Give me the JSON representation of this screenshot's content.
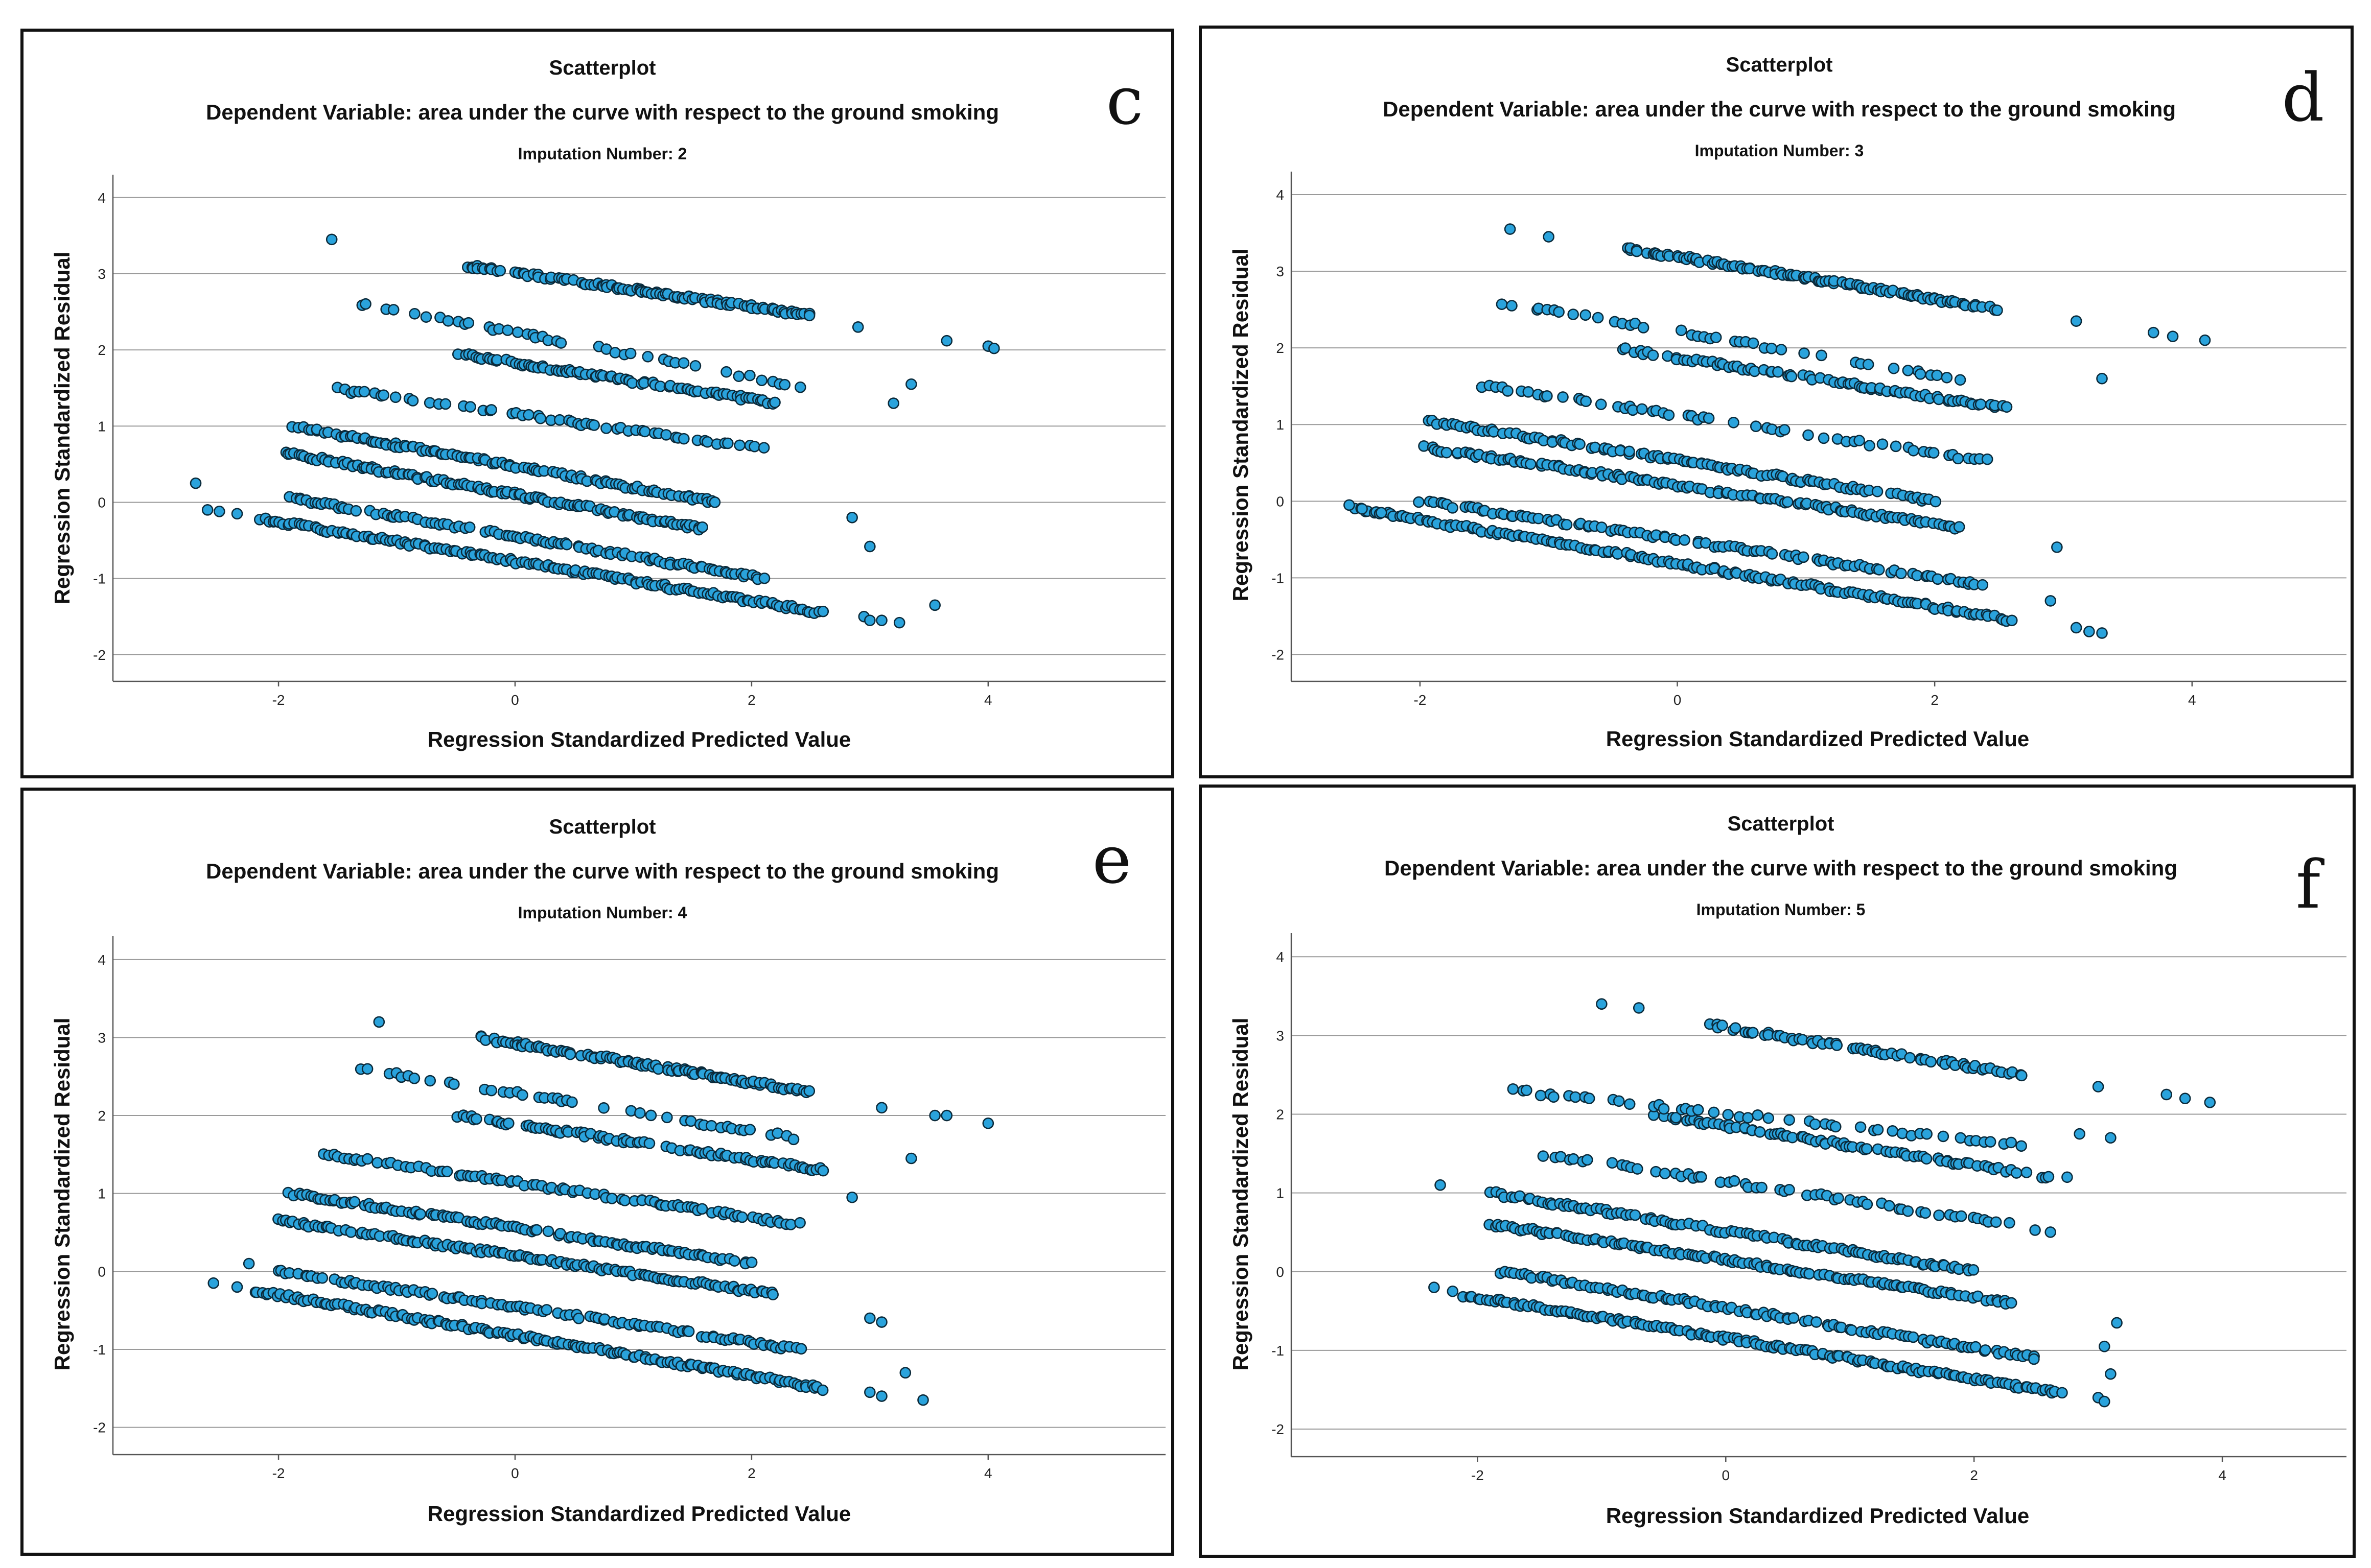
{
  "chart_data": [
    {
      "type": "scatter",
      "panel_letter": "c",
      "title": "Scatterplot",
      "subtitle": "Dependent Variable: area under the curve with respect to the ground smoking",
      "imputation": "Imputation Number: 2",
      "xlabel": "Regression Standardized Predicted Value",
      "ylabel": "Regression Standardized Residual",
      "xlim": [
        -3.4,
        5.5
      ],
      "ylim": [
        -2.35,
        4.3
      ],
      "xticks": [
        "-2",
        "0",
        "2",
        "4"
      ],
      "yticks": [
        "-2",
        "-1",
        "0",
        "1",
        "2",
        "3",
        "4"
      ],
      "grid": true,
      "seed": 11,
      "bands": [
        {
          "x0": -2.15,
          "y0": -0.22,
          "x1": 2.6,
          "y1": -1.45,
          "density": 1.0
        },
        {
          "x0": -1.9,
          "y0": 0.05,
          "x1": 2.1,
          "y1": -1.0,
          "density": 0.8
        },
        {
          "x0": -1.95,
          "y0": 0.65,
          "x1": 1.6,
          "y1": -0.35,
          "density": 0.85
        },
        {
          "x0": -1.9,
          "y0": 1.0,
          "x1": 1.7,
          "y1": 0.0,
          "density": 0.8
        },
        {
          "x0": -1.6,
          "y0": 1.5,
          "x1": 2.1,
          "y1": 0.7,
          "density": 0.6
        },
        {
          "x0": -0.5,
          "y0": 1.95,
          "x1": 2.2,
          "y1": 1.3,
          "density": 0.7
        },
        {
          "x0": -1.3,
          "y0": 2.6,
          "x1": 2.5,
          "y1": 1.5,
          "density": 0.5
        },
        {
          "x0": -0.4,
          "y0": 3.1,
          "x1": 2.5,
          "y1": 2.45,
          "density": 0.8
        }
      ],
      "scatter_extra": [
        [
          -2.7,
          0.25
        ],
        [
          -2.6,
          -0.1
        ],
        [
          -2.5,
          -0.12
        ],
        [
          -2.35,
          -0.15
        ],
        [
          3.0,
          -0.58
        ],
        [
          2.85,
          -0.2
        ],
        [
          3.65,
          2.12
        ],
        [
          4.0,
          2.05
        ],
        [
          4.05,
          2.02
        ],
        [
          3.55,
          -1.35
        ],
        [
          3.25,
          -1.58
        ],
        [
          3.1,
          -1.55
        ],
        [
          2.9,
          2.3
        ],
        [
          3.2,
          1.3
        ],
        [
          3.35,
          1.55
        ],
        [
          -1.55,
          3.45
        ],
        [
          2.95,
          -1.5
        ],
        [
          3.0,
          -1.55
        ]
      ]
    },
    {
      "type": "scatter",
      "panel_letter": "d",
      "title": "Scatterplot",
      "subtitle": "Dependent Variable: area under the curve with respect to the ground smoking",
      "imputation": "Imputation Number: 3",
      "xlabel": "Regression Standardized Predicted Value",
      "ylabel": "Regression Standardized Residual",
      "xlim": [
        -3.0,
        5.2
      ],
      "ylim": [
        -2.35,
        4.3
      ],
      "xticks": [
        "-2",
        "0",
        "2",
        "4"
      ],
      "yticks": [
        "-2",
        "-1",
        "0",
        "1",
        "2",
        "3",
        "4"
      ],
      "grid": true,
      "seed": 23,
      "bands": [
        {
          "x0": -2.5,
          "y0": -0.1,
          "x1": 2.6,
          "y1": -1.55,
          "density": 1.0
        },
        {
          "x0": -2.0,
          "y0": 0.0,
          "x1": 2.4,
          "y1": -1.1,
          "density": 0.8
        },
        {
          "x0": -1.95,
          "y0": 0.7,
          "x1": 2.2,
          "y1": -0.35,
          "density": 0.85
        },
        {
          "x0": -1.95,
          "y0": 1.05,
          "x1": 2.0,
          "y1": 0.0,
          "density": 0.8
        },
        {
          "x0": -1.5,
          "y0": 1.5,
          "x1": 2.5,
          "y1": 0.5,
          "density": 0.6
        },
        {
          "x0": -0.5,
          "y0": 2.0,
          "x1": 2.6,
          "y1": 1.2,
          "density": 0.7
        },
        {
          "x0": -1.4,
          "y0": 2.6,
          "x1": 2.2,
          "y1": 1.6,
          "density": 0.5
        },
        {
          "x0": -0.4,
          "y0": 3.3,
          "x1": 2.5,
          "y1": 2.5,
          "density": 0.8
        }
      ],
      "scatter_extra": [
        [
          -2.55,
          -0.05
        ],
        [
          -2.45,
          -0.1
        ],
        [
          -2.3,
          -0.15
        ],
        [
          3.1,
          -1.65
        ],
        [
          3.2,
          -1.7
        ],
        [
          3.3,
          -1.72
        ],
        [
          3.7,
          2.2
        ],
        [
          3.85,
          2.15
        ],
        [
          4.1,
          2.1
        ],
        [
          3.1,
          2.35
        ],
        [
          3.3,
          1.6
        ],
        [
          2.95,
          -0.6
        ],
        [
          -1.3,
          3.55
        ],
        [
          -1.0,
          3.45
        ],
        [
          2.9,
          -1.3
        ]
      ]
    },
    {
      "type": "scatter",
      "panel_letter": "e",
      "title": "Scatterplot",
      "subtitle": "Dependent Variable: area under the curve with respect to the ground smoking",
      "imputation": "Imputation Number: 4",
      "xlabel": "Regression Standardized Predicted Value",
      "ylabel": "Regression Standardized Residual",
      "xlim": [
        -3.4,
        5.5
      ],
      "ylim": [
        -2.35,
        4.3
      ],
      "xticks": [
        "-2",
        "0",
        "2",
        "4"
      ],
      "yticks": [
        "-2",
        "-1",
        "0",
        "1",
        "2",
        "3",
        "4"
      ],
      "grid": true,
      "seed": 37,
      "bands": [
        {
          "x0": -2.2,
          "y0": -0.25,
          "x1": 2.6,
          "y1": -1.5,
          "density": 1.0
        },
        {
          "x0": -2.0,
          "y0": 0.0,
          "x1": 2.4,
          "y1": -1.0,
          "density": 0.8
        },
        {
          "x0": -2.0,
          "y0": 0.65,
          "x1": 2.2,
          "y1": -0.3,
          "density": 0.85
        },
        {
          "x0": -1.9,
          "y0": 1.0,
          "x1": 2.0,
          "y1": 0.1,
          "density": 0.8
        },
        {
          "x0": -1.6,
          "y0": 1.5,
          "x1": 2.4,
          "y1": 0.6,
          "density": 0.7
        },
        {
          "x0": -0.5,
          "y0": 2.0,
          "x1": 2.6,
          "y1": 1.3,
          "density": 0.7
        },
        {
          "x0": -1.3,
          "y0": 2.6,
          "x1": 2.4,
          "y1": 1.7,
          "density": 0.5
        },
        {
          "x0": -0.3,
          "y0": 3.0,
          "x1": 2.5,
          "y1": 2.3,
          "density": 0.8
        }
      ],
      "scatter_extra": [
        [
          -2.55,
          -0.15
        ],
        [
          -2.35,
          -0.2
        ],
        [
          -2.25,
          0.1
        ],
        [
          3.0,
          -1.55
        ],
        [
          3.1,
          -1.6
        ],
        [
          3.3,
          -1.3
        ],
        [
          3.45,
          -1.65
        ],
        [
          3.55,
          2.0
        ],
        [
          3.65,
          2.0
        ],
        [
          4.0,
          1.9
        ],
        [
          3.0,
          -0.6
        ],
        [
          3.1,
          -0.65
        ],
        [
          3.1,
          2.1
        ],
        [
          3.35,
          1.45
        ],
        [
          -1.15,
          3.2
        ],
        [
          2.85,
          0.95
        ]
      ]
    },
    {
      "type": "scatter",
      "panel_letter": "f",
      "title": "Scatterplot",
      "subtitle": "Dependent Variable: area under the curve with respect to the ground smoking",
      "imputation": "Imputation Number: 5",
      "xlabel": "Regression Standardized Predicted Value",
      "ylabel": "Regression Standardized Residual",
      "xlim": [
        -3.5,
        5.0
      ],
      "ylim": [
        -2.35,
        4.3
      ],
      "xticks": [
        "-2",
        "0",
        "2",
        "4"
      ],
      "yticks": [
        "-2",
        "-1",
        "0",
        "1",
        "2",
        "3",
        "4"
      ],
      "grid": true,
      "seed": 53,
      "bands": [
        {
          "x0": -2.1,
          "y0": -0.3,
          "x1": 2.7,
          "y1": -1.55,
          "density": 1.0
        },
        {
          "x0": -1.8,
          "y0": 0.0,
          "x1": 2.5,
          "y1": -1.1,
          "density": 0.8
        },
        {
          "x0": -1.9,
          "y0": 0.6,
          "x1": 2.3,
          "y1": -0.4,
          "density": 0.85
        },
        {
          "x0": -1.9,
          "y0": 1.0,
          "x1": 2.0,
          "y1": 0.0,
          "density": 0.8
        },
        {
          "x0": -1.5,
          "y0": 1.5,
          "x1": 2.7,
          "y1": 0.5,
          "density": 0.6
        },
        {
          "x0": -0.6,
          "y0": 2.0,
          "x1": 2.6,
          "y1": 1.2,
          "density": 0.7
        },
        {
          "x0": -1.7,
          "y0": 2.3,
          "x1": 2.4,
          "y1": 1.6,
          "density": 0.5
        },
        {
          "x0": -0.2,
          "y0": 3.15,
          "x1": 2.4,
          "y1": 2.5,
          "density": 0.6
        }
      ],
      "scatter_extra": [
        [
          -2.3,
          1.1
        ],
        [
          -2.35,
          -0.2
        ],
        [
          -2.2,
          -0.25
        ],
        [
          3.0,
          -1.6
        ],
        [
          3.05,
          -1.65
        ],
        [
          3.1,
          -1.3
        ],
        [
          3.05,
          -0.95
        ],
        [
          3.15,
          -0.65
        ],
        [
          3.55,
          2.25
        ],
        [
          3.7,
          2.2
        ],
        [
          3.9,
          2.15
        ],
        [
          3.0,
          2.35
        ],
        [
          3.1,
          1.7
        ],
        [
          -1.0,
          3.4
        ],
        [
          -0.7,
          3.35
        ],
        [
          2.85,
          1.75
        ],
        [
          2.75,
          1.2
        ]
      ]
    }
  ]
}
